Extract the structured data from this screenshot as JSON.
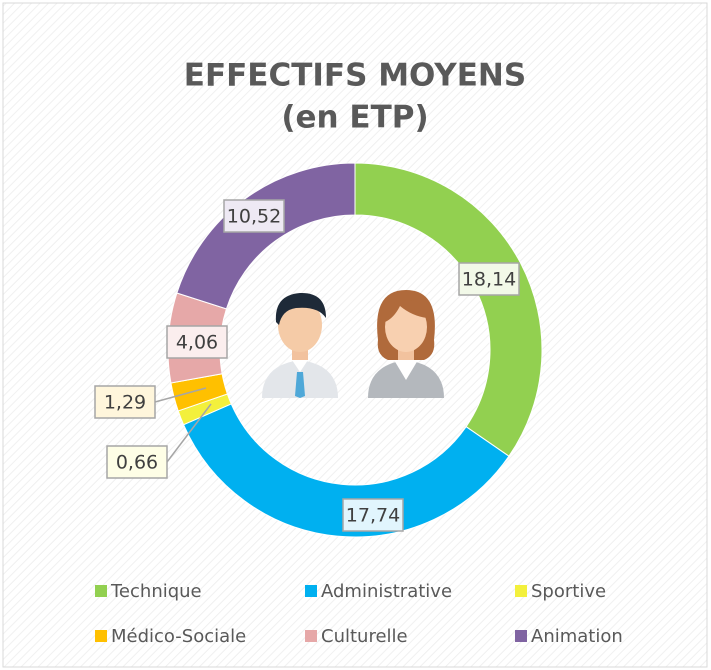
{
  "chart_data": {
    "type": "donut",
    "title": "EFFECTIFS MOYENS",
    "subtitle": "(en ETP)",
    "categories": [
      "Technique",
      "Administrative",
      "Sportive",
      "Médico-Sociale",
      "Culturelle",
      "Animation"
    ],
    "values": [
      18.14,
      17.74,
      0.66,
      1.29,
      4.06,
      10.52
    ],
    "value_labels": [
      "18,14",
      "17,74",
      "0,66",
      "1,29",
      "4,06",
      "10,52"
    ],
    "colors": [
      "#92d050",
      "#00b0f0",
      "#f3f03c",
      "#ffc000",
      "#e6a8a8",
      "#8064a2"
    ],
    "legend": "bottom"
  }
}
